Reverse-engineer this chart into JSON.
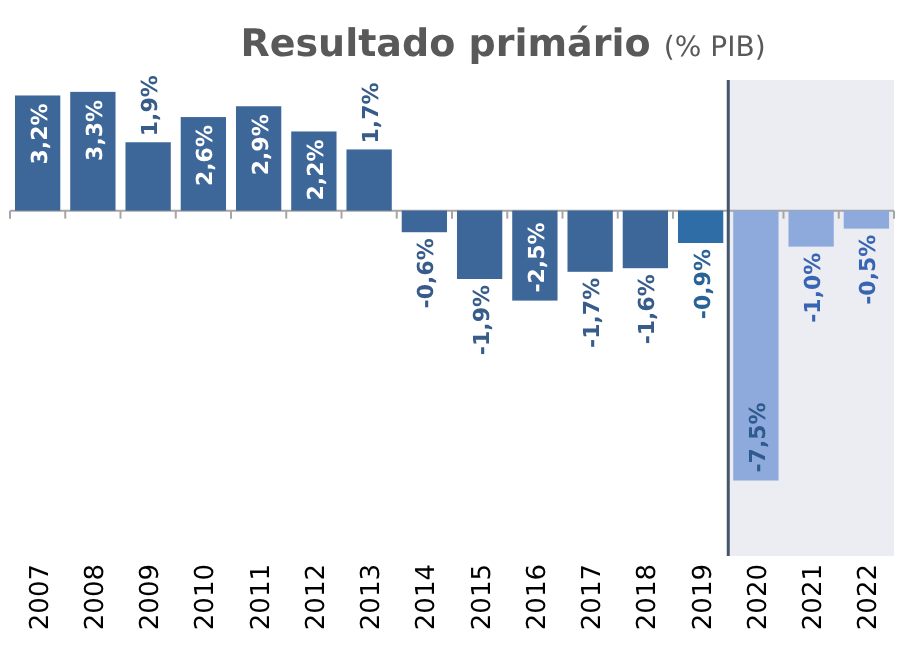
{
  "chart_data": {
    "type": "bar",
    "title": "Resultado primário (% PIB)",
    "categories": [
      "2007",
      "2008",
      "2009",
      "2010",
      "2011",
      "2012",
      "2013",
      "2014",
      "2015",
      "2016",
      "2017",
      "2018",
      "2019",
      "2020",
      "2021",
      "2022"
    ],
    "values": [
      3.2,
      3.3,
      1.9,
      2.6,
      2.9,
      2.2,
      1.7,
      -0.6,
      -1.9,
      -2.5,
      -1.7,
      -1.6,
      -0.9,
      -7.5,
      -1.0,
      -0.5
    ],
    "value_labels": [
      "3,2%",
      "3,3%",
      "1,9%",
      "2,6%",
      "2,9%",
      "2,2%",
      "1,7%",
      "-0,6%",
      "-1,9%",
      "-2,5%",
      "-1,7%",
      "-1,6%",
      "-0,9%",
      "-7,5%",
      "-1,0%",
      "-0,5%"
    ],
    "colors": [
      "#3d6699",
      "#3d6699",
      "#3d6699",
      "#3d6699",
      "#3d6699",
      "#3d6699",
      "#3d6699",
      "#3d6699",
      "#3d6699",
      "#3d6699",
      "#3d6699",
      "#3d6699",
      "#2f6da6",
      "#8eaadc",
      "#8eaadc",
      "#8eaadc"
    ],
    "bands": [
      {
        "axis": "x",
        "from": "2020",
        "to": "2022",
        "color": "#ebedf2"
      }
    ]
  }
}
